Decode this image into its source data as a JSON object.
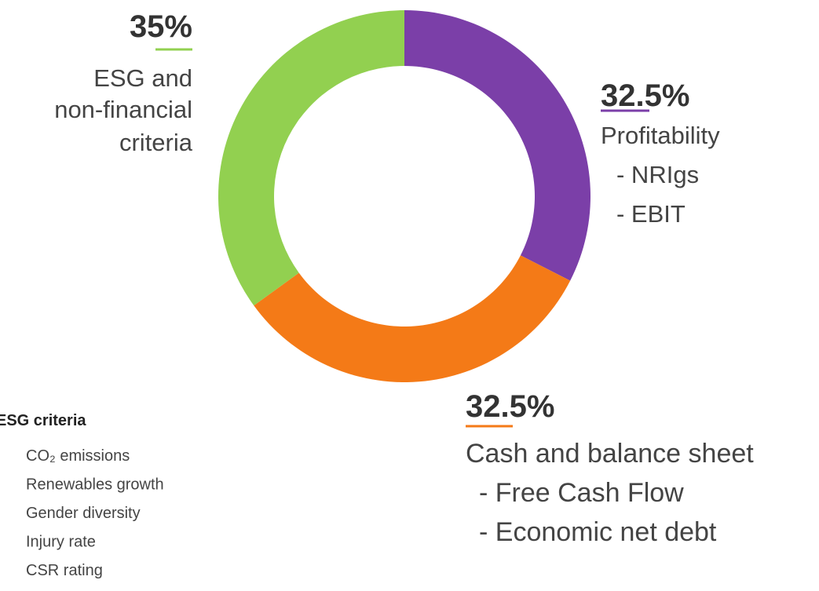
{
  "chart_data": {
    "type": "pie",
    "donut": true,
    "values": [
      32.5,
      32.5,
      35
    ],
    "value_labels": [
      "32.5%",
      "32.5%",
      "35%"
    ],
    "labels": [
      [
        "Profitability",
        "- NRIgs",
        "- EBIT"
      ],
      [
        "Cash and balance sheet",
        "- Free Cash Flow",
        "- Economic net debt"
      ],
      [
        "ESG and",
        "non-financial",
        "criteria"
      ]
    ],
    "colors": [
      "#7b3fa8",
      "#f47a17",
      "#92d050"
    ]
  },
  "esg_criteria": {
    "title": "ESG criteria",
    "items": [
      "CO₂ emissions",
      "Renewables growth",
      "Gender diversity",
      "Injury rate",
      "CSR rating"
    ]
  }
}
